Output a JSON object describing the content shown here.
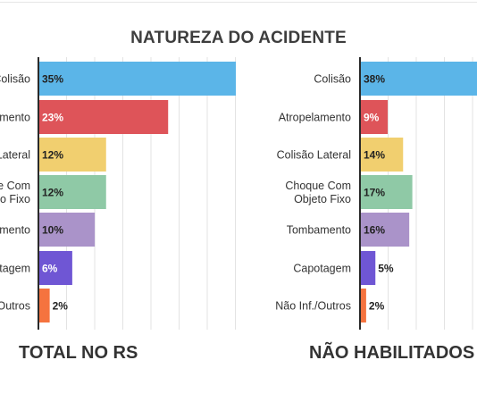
{
  "title": "NATUREZA DO ACIDENTE",
  "chart_data": [
    {
      "type": "bar",
      "orientation": "horizontal",
      "title": "TOTAL NO RS",
      "categories": [
        "Colisão",
        "Atropelamento",
        "Colisão Lateral",
        "Choque Com Objeto Fixo",
        "Tombamento",
        "Capotagem",
        "Não Inf./Outros"
      ],
      "values": [
        35,
        23,
        12,
        12,
        10,
        6,
        2
      ],
      "value_labels": [
        "35%",
        "23%",
        "12%",
        "12%",
        "10%",
        "6%",
        "2%"
      ],
      "colors": [
        "#5bb5e8",
        "#de5459",
        "#f1cf6f",
        "#8fc9a6",
        "#aa93c9",
        "#6f56d4",
        "#f5733f"
      ],
      "label_colors": [
        "#222222",
        "#ffffff",
        "#222222",
        "#222222",
        "#222222",
        "#ffffff",
        "#222222"
      ],
      "xlim": [
        0,
        35
      ],
      "grid": true
    },
    {
      "type": "bar",
      "orientation": "horizontal",
      "title": "NÃO HABILITADOS",
      "categories": [
        "Colisão",
        "Atropelamento",
        "Colisão Lateral",
        "Choque Com Objeto Fixo",
        "Tombamento",
        "Capotagem",
        "Não Inf./Outros"
      ],
      "values": [
        38,
        9,
        14,
        17,
        16,
        5,
        2
      ],
      "value_labels": [
        "38%",
        "9%",
        "14%",
        "17%",
        "16%",
        "5%",
        "2%"
      ],
      "colors": [
        "#5bb5e8",
        "#de5459",
        "#f1cf6f",
        "#8fc9a6",
        "#aa93c9",
        "#6f56d4",
        "#f5733f"
      ],
      "label_colors": [
        "#222222",
        "#ffffff",
        "#222222",
        "#222222",
        "#222222",
        "#ffffff",
        "#222222"
      ],
      "xlim": [
        0,
        38
      ],
      "grid": true
    }
  ]
}
